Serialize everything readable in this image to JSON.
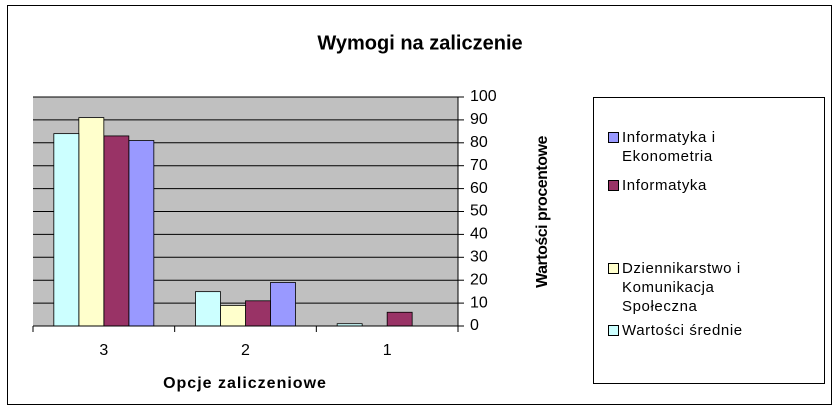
{
  "chart_data": {
    "type": "bar",
    "title": "Wymogi na zaliczenie",
    "x_label": "Opcje zaliczeniowe",
    "y_label": "Wartości procentowe",
    "categories": [
      "3",
      "2",
      "1"
    ],
    "series": [
      {
        "name": "Informatyka i Ekonometria",
        "color": "#9999ff",
        "values": [
          81,
          19,
          0
        ]
      },
      {
        "name": "Informatyka",
        "color": "#993366",
        "values": [
          83,
          11,
          6
        ]
      },
      {
        "name": "Dziennikarstwo i Komunikacja Społeczna",
        "color": "#ffffcc",
        "values": [
          91,
          9,
          0
        ]
      },
      {
        "name": "Wartości średnie",
        "color": "#ccffff",
        "values": [
          84,
          15,
          1
        ]
      }
    ],
    "ylim": [
      0,
      100
    ],
    "yticks": [
      0,
      10,
      20,
      30,
      40,
      50,
      60,
      70,
      80,
      90,
      100
    ],
    "grid": true,
    "legend": "right",
    "plot_background": "#c0c0c0"
  }
}
